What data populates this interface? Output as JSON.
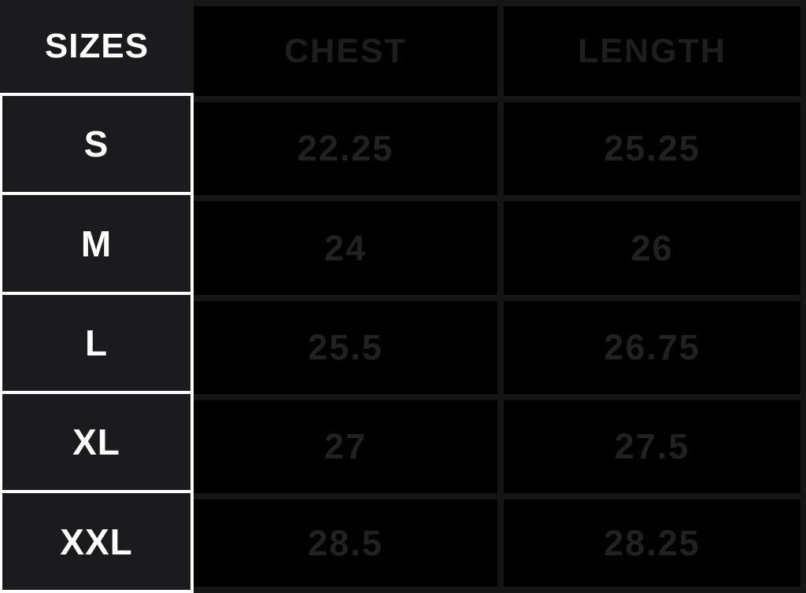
{
  "chart_data": {
    "type": "table",
    "title": "Apparel size chart",
    "columns": [
      "SIZES",
      "CHEST",
      "LENGTH"
    ],
    "rows": [
      [
        "S",
        "22.25",
        "25.25"
      ],
      [
        "M",
        "24",
        "26"
      ],
      [
        "L",
        "25.5",
        "26.75"
      ],
      [
        "XL",
        "27",
        "27.5"
      ],
      [
        "XXL",
        "28.5",
        "28.25"
      ]
    ],
    "layout_hints": {
      "header_row": true,
      "first_column_is_header": true,
      "grid": "on"
    }
  },
  "colors": {
    "page_background": "#000000",
    "size_column_background": "#1b1b1d",
    "size_column_text": "#fcfcfc",
    "white_border": "#fcfcfc",
    "grid_line": "#151515",
    "data_cell_background": "#000000",
    "data_text": "#212121"
  }
}
